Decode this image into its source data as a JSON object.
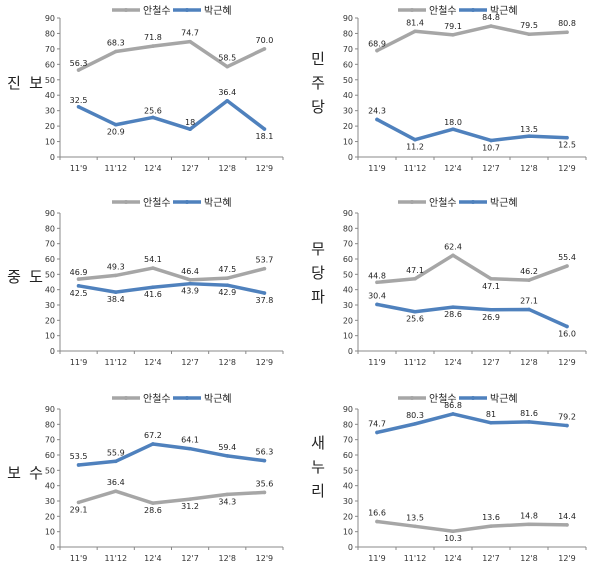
{
  "colors": {
    "ahn": "#a6a6a6",
    "park": "#4f81bd"
  },
  "legend": {
    "ahn": "안철수",
    "park": "박근혜"
  },
  "chart_data": [
    {
      "type": "line",
      "label": "진보",
      "categories": [
        "11'9",
        "11'12",
        "12'4",
        "12'7",
        "12'8",
        "12'9"
      ],
      "ylim": [
        0,
        90
      ],
      "yticks": [
        0,
        10,
        20,
        30,
        40,
        50,
        60,
        70,
        80,
        90
      ],
      "series": [
        {
          "name": "안철수",
          "values": [
            56.3,
            68.3,
            71.8,
            74.7,
            58.5,
            70.0
          ],
          "labels": [
            "56.3",
            "68.3",
            "71.8",
            "74.7",
            "58.5",
            "70.0"
          ]
        },
        {
          "name": "박근혜",
          "values": [
            32.5,
            20.9,
            25.6,
            18,
            36.4,
            18.1
          ],
          "labels": [
            "32.5",
            "20.9",
            "25.6",
            "18",
            "36.4",
            "18.1"
          ]
        }
      ]
    },
    {
      "type": "line",
      "label": "민주당",
      "categories": [
        "11'9",
        "11'12",
        "12'4",
        "12'7",
        "12'8",
        "12'9"
      ],
      "ylim": [
        0,
        90
      ],
      "yticks": [
        0,
        10,
        20,
        30,
        40,
        50,
        60,
        70,
        80,
        90
      ],
      "series": [
        {
          "name": "안철수",
          "values": [
            68.9,
            81.4,
            79.1,
            84.8,
            79.5,
            80.8
          ],
          "labels": [
            "68.9",
            "81.4",
            "79.1",
            "84.8",
            "79.5",
            "80.8"
          ]
        },
        {
          "name": "박근혜",
          "values": [
            24.3,
            11.2,
            18.0,
            10.7,
            13.5,
            12.5
          ],
          "labels": [
            "24.3",
            "11.2",
            "18.0",
            "10.7",
            "13.5",
            "12.5"
          ]
        }
      ]
    },
    {
      "type": "line",
      "label": "중도",
      "categories": [
        "11'9",
        "11'12",
        "12'4",
        "12'7",
        "12'8",
        "12'9"
      ],
      "ylim": [
        0,
        90
      ],
      "yticks": [
        0,
        10,
        20,
        30,
        40,
        50,
        60,
        70,
        80,
        90
      ],
      "series": [
        {
          "name": "안철수",
          "values": [
            46.9,
            49.3,
            54.1,
            46.4,
            47.5,
            53.7
          ],
          "labels": [
            "46.9",
            "49.3",
            "54.1",
            "46.4",
            "47.5",
            "53.7"
          ]
        },
        {
          "name": "박근혜",
          "values": [
            42.5,
            38.4,
            41.6,
            43.9,
            42.9,
            37.8
          ],
          "labels": [
            "42.5",
            "38.4",
            "41.6",
            "43.9",
            "42.9",
            "37.8"
          ]
        }
      ]
    },
    {
      "type": "line",
      "label": "무당파",
      "categories": [
        "11'9",
        "11'12",
        "12'4",
        "12'7",
        "12'8",
        "12'9"
      ],
      "ylim": [
        0,
        90
      ],
      "yticks": [
        0,
        10,
        20,
        30,
        40,
        50,
        60,
        70,
        80,
        90
      ],
      "series": [
        {
          "name": "안철수",
          "values": [
            44.8,
            47.1,
            62.4,
            47.1,
            46.2,
            55.4
          ],
          "labels": [
            "44.8",
            "47.1",
            "62.4",
            "47.1",
            "46.2",
            "55.4"
          ]
        },
        {
          "name": "박근혜",
          "values": [
            30.4,
            25.6,
            28.6,
            26.9,
            27.1,
            16.0
          ],
          "labels": [
            "30.4",
            "25.6",
            "28.6",
            "26.9",
            "27.1",
            "16.0"
          ]
        }
      ]
    },
    {
      "type": "line",
      "label": "보수",
      "categories": [
        "11'9",
        "11'12",
        "12'4",
        "12'7",
        "12'8",
        "12'9"
      ],
      "ylim": [
        0,
        90
      ],
      "yticks": [
        0,
        10,
        20,
        30,
        40,
        50,
        60,
        70,
        80,
        90
      ],
      "series": [
        {
          "name": "안철수",
          "values": [
            29.1,
            36.4,
            28.6,
            31.2,
            34.3,
            35.6
          ],
          "labels": [
            "29.1",
            "36.4",
            "28.6",
            "31.2",
            "34.3",
            "35.6"
          ]
        },
        {
          "name": "박근혜",
          "values": [
            53.5,
            55.9,
            67.2,
            64.1,
            59.4,
            56.3
          ],
          "labels": [
            "53.5",
            "55.9",
            "67.2",
            "64.1",
            "59.4",
            "56.3"
          ]
        }
      ]
    },
    {
      "type": "line",
      "label": "새누리",
      "categories": [
        "11'9",
        "11'12",
        "12'4",
        "12'7",
        "12'8",
        "12'9"
      ],
      "ylim": [
        0,
        90
      ],
      "yticks": [
        0,
        10,
        20,
        30,
        40,
        50,
        60,
        70,
        80,
        90
      ],
      "series": [
        {
          "name": "안철수",
          "values": [
            16.6,
            13.5,
            10.3,
            13.6,
            14.8,
            14.4
          ],
          "labels": [
            "16.6",
            "13.5",
            "10.3",
            "13.6",
            "14.8",
            "14.4"
          ]
        },
        {
          "name": "박근혜",
          "values": [
            74.7,
            80.3,
            86.8,
            81,
            81.6,
            79.2
          ],
          "labels": [
            "74.7",
            "80.3",
            "86.8",
            "81",
            "81.6",
            "79.2"
          ]
        }
      ]
    }
  ]
}
